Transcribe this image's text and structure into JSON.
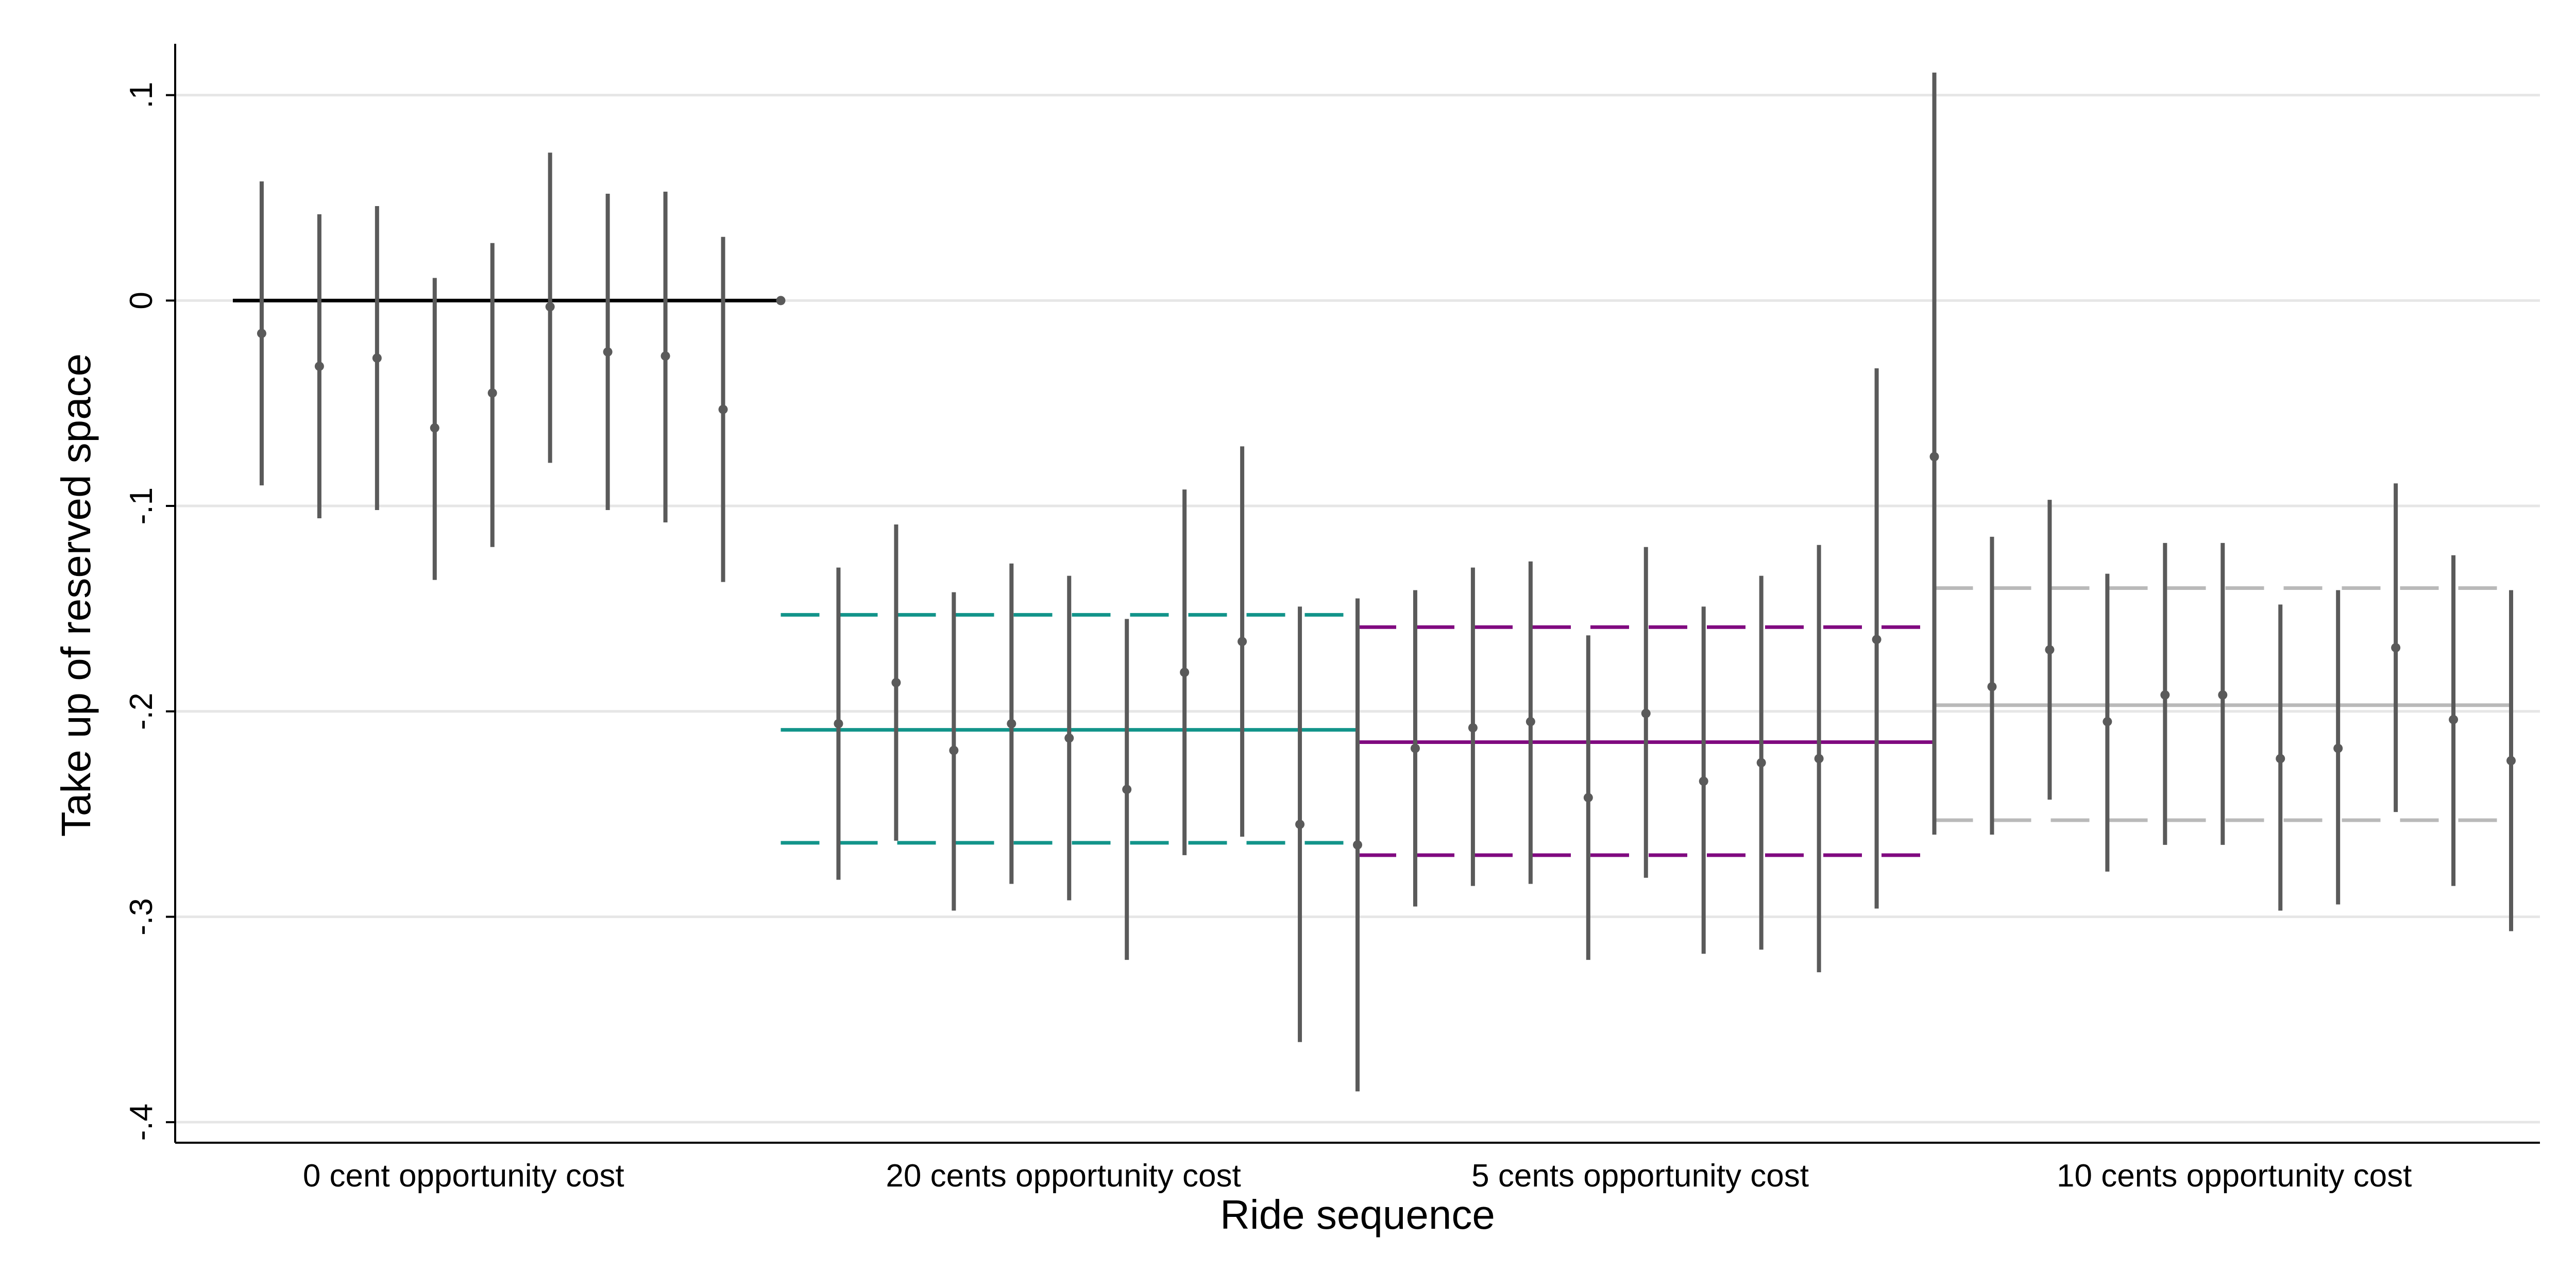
{
  "chart_data": {
    "type": "scatter",
    "xlabel": "Ride sequence",
    "ylabel": "Take up of reserved space",
    "ylim": [
      -0.41,
      0.125
    ],
    "xlim": [
      -0.5,
      40.5
    ],
    "grid": true,
    "legend": "none",
    "y_ticks": [
      {
        "value": 0.1,
        "label": ".1"
      },
      {
        "value": 0,
        "label": "0"
      },
      {
        "value": -0.1,
        "label": "-.1"
      },
      {
        "value": -0.2,
        "label": "-.2"
      },
      {
        "value": -0.3,
        "label": "-.3"
      },
      {
        "value": -0.4,
        "label": "-.4"
      }
    ],
    "categories": [
      {
        "label": "0 cent opportunity cost",
        "x": 4.5
      },
      {
        "label": "20 cents opportunity cost",
        "x": 14.9
      },
      {
        "label": "5 cents opportunity cost",
        "x": 24.9
      },
      {
        "label": "10 cents opportunity cost",
        "x": 35.2
      }
    ],
    "points": [
      {
        "x": 1,
        "y": -0.016,
        "lo": -0.09,
        "hi": 0.058
      },
      {
        "x": 2,
        "y": -0.032,
        "lo": -0.106,
        "hi": 0.042
      },
      {
        "x": 3,
        "y": -0.028,
        "lo": -0.102,
        "hi": 0.046
      },
      {
        "x": 4,
        "y": -0.062,
        "lo": -0.136,
        "hi": 0.011
      },
      {
        "x": 5,
        "y": -0.045,
        "lo": -0.12,
        "hi": 0.028
      },
      {
        "x": 6,
        "y": -0.003,
        "lo": -0.079,
        "hi": 0.072
      },
      {
        "x": 7,
        "y": -0.025,
        "lo": -0.102,
        "hi": 0.052
      },
      {
        "x": 8,
        "y": -0.027,
        "lo": -0.108,
        "hi": 0.053
      },
      {
        "x": 9,
        "y": -0.053,
        "lo": -0.137,
        "hi": 0.031
      },
      {
        "x": 10,
        "y": 0.0
      },
      {
        "x": 11,
        "y": -0.206,
        "lo": -0.282,
        "hi": -0.13
      },
      {
        "x": 12,
        "y": -0.186,
        "lo": -0.263,
        "hi": -0.109
      },
      {
        "x": 13,
        "y": -0.219,
        "lo": -0.297,
        "hi": -0.142
      },
      {
        "x": 14,
        "y": -0.206,
        "lo": -0.284,
        "hi": -0.128
      },
      {
        "x": 15,
        "y": -0.213,
        "lo": -0.292,
        "hi": -0.134
      },
      {
        "x": 16,
        "y": -0.238,
        "lo": -0.321,
        "hi": -0.155
      },
      {
        "x": 17,
        "y": -0.181,
        "lo": -0.27,
        "hi": -0.092
      },
      {
        "x": 18,
        "y": -0.166,
        "lo": -0.261,
        "hi": -0.071
      },
      {
        "x": 19,
        "y": -0.255,
        "lo": -0.361,
        "hi": -0.149
      },
      {
        "x": 20,
        "y": -0.265,
        "lo": -0.385,
        "hi": -0.145
      },
      {
        "x": 21,
        "y": -0.218,
        "lo": -0.295,
        "hi": -0.141
      },
      {
        "x": 22,
        "y": -0.208,
        "lo": -0.285,
        "hi": -0.13
      },
      {
        "x": 23,
        "y": -0.205,
        "lo": -0.284,
        "hi": -0.127
      },
      {
        "x": 24,
        "y": -0.242,
        "lo": -0.321,
        "hi": -0.163
      },
      {
        "x": 25,
        "y": -0.201,
        "lo": -0.281,
        "hi": -0.12
      },
      {
        "x": 26,
        "y": -0.234,
        "lo": -0.318,
        "hi": -0.149
      },
      {
        "x": 27,
        "y": -0.225,
        "lo": -0.316,
        "hi": -0.134
      },
      {
        "x": 28,
        "y": -0.223,
        "lo": -0.327,
        "hi": -0.119
      },
      {
        "x": 29,
        "y": -0.165,
        "lo": -0.296,
        "hi": -0.033
      },
      {
        "x": 30,
        "y": -0.076,
        "lo": -0.26,
        "hi": 0.111
      },
      {
        "x": 31,
        "y": -0.188,
        "lo": -0.26,
        "hi": -0.115
      },
      {
        "x": 32,
        "y": -0.17,
        "lo": -0.243,
        "hi": -0.097
      },
      {
        "x": 33,
        "y": -0.205,
        "lo": -0.278,
        "hi": -0.133
      },
      {
        "x": 34,
        "y": -0.192,
        "lo": -0.265,
        "hi": -0.118
      },
      {
        "x": 35,
        "y": -0.192,
        "lo": -0.265,
        "hi": -0.118
      },
      {
        "x": 36,
        "y": -0.223,
        "lo": -0.297,
        "hi": -0.148
      },
      {
        "x": 37,
        "y": -0.218,
        "lo": -0.294,
        "hi": -0.141
      },
      {
        "x": 38,
        "y": -0.169,
        "lo": -0.249,
        "hi": -0.089
      },
      {
        "x": 39,
        "y": -0.204,
        "lo": -0.285,
        "hi": -0.124
      },
      {
        "x": 40,
        "y": -0.224,
        "lo": -0.307,
        "hi": -0.141
      }
    ],
    "segments": [
      {
        "x": [
          0.5,
          10
        ],
        "mean": 0.0,
        "color": "#000000"
      },
      {
        "x": [
          10,
          20
        ],
        "mean": -0.209,
        "lo": -0.264,
        "hi": -0.153,
        "color": "#12948a"
      },
      {
        "x": [
          20,
          30
        ],
        "mean": -0.215,
        "lo": -0.27,
        "hi": -0.159,
        "color": "#800a80"
      },
      {
        "x": [
          30,
          40
        ],
        "mean": -0.197,
        "lo": -0.253,
        "hi": -0.14,
        "color": "#b9b9b9"
      }
    ],
    "marker_color": "#5a5a5a"
  }
}
